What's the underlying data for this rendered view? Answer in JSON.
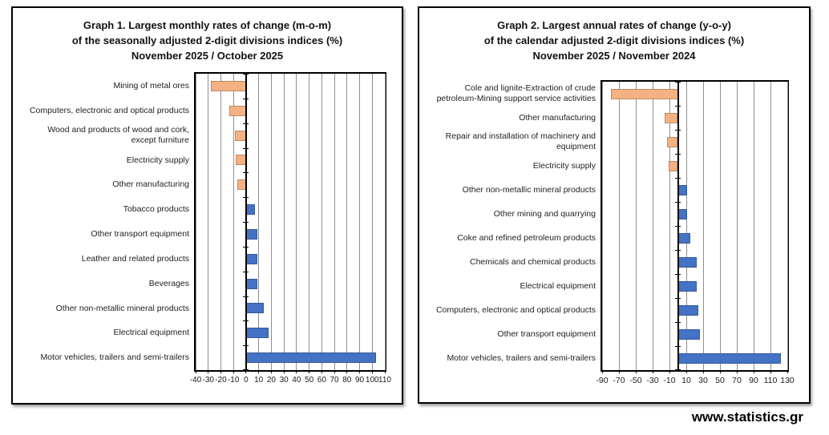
{
  "footer": {
    "link_text": "www.statistics.gr"
  },
  "chart_data": [
    {
      "type": "bar",
      "orientation": "horizontal",
      "title": "Graph 1. Largest monthly rates of change (m-o-m) of the seasonally adjusted 2-digit divisions indices (%) November 2025 / October 2025",
      "title_lines": [
        "Graph 1. Largest monthly rates of change (m-o-m)",
        "of the seasonally adjusted 2-digit divisions indices (%)",
        "November 2025 / October 2025"
      ],
      "categories": [
        "Mining of metal ores",
        "Computers, electronic and optical products",
        "Wood and products of wood and cork,\nexcept furniture",
        "Electricity supply",
        "Other manufacturing",
        "Tobacco products",
        "Other transport equipment",
        "Leather and related products",
        "Beverages",
        "Other non-metallic mineral products",
        "Electrical equipment",
        "Motor vehicles, trailers and semi-trailers"
      ],
      "values": [
        -28,
        -13,
        -9,
        -8,
        -7,
        7,
        9,
        9,
        9,
        14,
        18,
        103
      ],
      "xlim": [
        -40,
        110
      ],
      "xticks": [
        -40,
        -30,
        -20,
        -10,
        0,
        10,
        20,
        30,
        40,
        50,
        60,
        70,
        80,
        90,
        100,
        110
      ],
      "xlabel": "",
      "ylabel": "",
      "grid": true,
      "legend": false,
      "positive_color": "#4472C4",
      "negative_color": "#F4B183"
    },
    {
      "type": "bar",
      "orientation": "horizontal",
      "title": "Graph 2. Largest annual rates of change (y-o-y) of the calendar adjusted 2-digit divisions indices (%) November 2025 / November 2024",
      "title_lines": [
        "Graph 2. Largest annual rates of change (y-o-y)",
        "of the calendar adjusted 2-digit divisions indices (%)",
        "November 2025 / November 2024"
      ],
      "categories": [
        "Cole and lignite-Extraction of crude\npetroleum-Mining support service activities",
        "Other manufacturing",
        "Repair and installation of machinery and\nequipment",
        "Electricity supply",
        "Other non-metallic mineral products",
        "Other mining and quarrying",
        "Coke and refined petroleum products",
        "Chemicals and chemical products",
        "Electrical equipment",
        "Computers, electronic and optical products",
        "Other transport equipment",
        "Motor vehicles, trailers and semi-trailers"
      ],
      "values": [
        -80,
        -16,
        -13,
        -11,
        11,
        11,
        15,
        22,
        22,
        24,
        26,
        122
      ],
      "xlim": [
        -90,
        130
      ],
      "xticks": [
        -90,
        -70,
        -50,
        -30,
        -10,
        10,
        30,
        50,
        70,
        90,
        110,
        130
      ],
      "xlabel": "",
      "ylabel": "",
      "grid": true,
      "legend": false,
      "positive_color": "#4472C4",
      "negative_color": "#F4B183"
    }
  ]
}
